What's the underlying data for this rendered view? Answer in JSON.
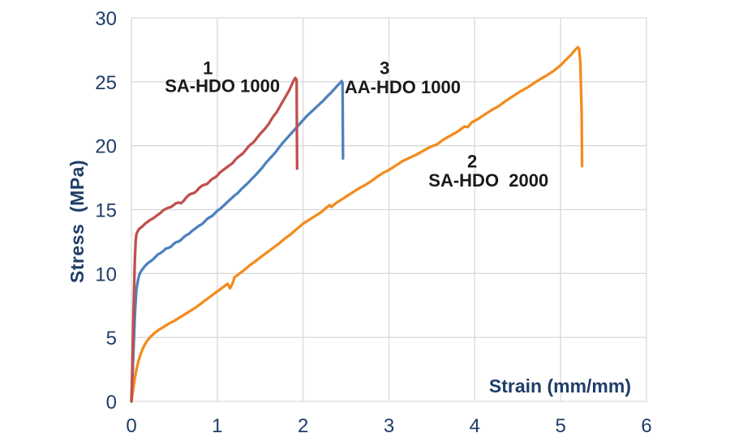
{
  "chart_data": {
    "type": "line",
    "title": "",
    "xlabel": "Strain (mm/mm)",
    "ylabel": "Stress  (MPa)",
    "xlim": [
      0,
      6
    ],
    "ylim": [
      0,
      30
    ],
    "xticks": [
      0,
      1,
      2,
      3,
      4,
      5,
      6
    ],
    "yticks": [
      0,
      5,
      10,
      15,
      20,
      25,
      30
    ],
    "grid": true,
    "legend_position": "none",
    "colors": {
      "grid": "#D9D9D9",
      "axis_text": "#1F3D68",
      "annotation_text": "#1A1A1A",
      "background": "#FFFFFF"
    },
    "series": [
      {
        "curve_number": "1",
        "name": "SA-HDO 1000",
        "color": "#C0504D",
        "annotation": {
          "number_pos": [
            0.89,
            26.1
          ],
          "label_pos": [
            1.06,
            24.7
          ]
        },
        "points": [
          [
            0.0,
            0.0
          ],
          [
            0.01,
            2.5
          ],
          [
            0.02,
            5.5
          ],
          [
            0.03,
            8.5
          ],
          [
            0.04,
            11.0
          ],
          [
            0.05,
            12.6
          ],
          [
            0.06,
            13.1
          ],
          [
            0.08,
            13.4
          ],
          [
            0.1,
            13.55
          ],
          [
            0.13,
            13.7
          ],
          [
            0.16,
            13.9
          ],
          [
            0.19,
            14.05
          ],
          [
            0.22,
            14.2
          ],
          [
            0.25,
            14.3
          ],
          [
            0.28,
            14.45
          ],
          [
            0.31,
            14.6
          ],
          [
            0.34,
            14.75
          ],
          [
            0.37,
            14.95
          ],
          [
            0.4,
            15.05
          ],
          [
            0.43,
            15.15
          ],
          [
            0.46,
            15.2
          ],
          [
            0.49,
            15.35
          ],
          [
            0.52,
            15.5
          ],
          [
            0.55,
            15.55
          ],
          [
            0.58,
            15.5
          ],
          [
            0.61,
            15.7
          ],
          [
            0.64,
            15.95
          ],
          [
            0.67,
            16.15
          ],
          [
            0.7,
            16.25
          ],
          [
            0.73,
            16.3
          ],
          [
            0.76,
            16.45
          ],
          [
            0.79,
            16.7
          ],
          [
            0.82,
            16.85
          ],
          [
            0.85,
            16.95
          ],
          [
            0.88,
            17.0
          ],
          [
            0.91,
            17.2
          ],
          [
            0.94,
            17.4
          ],
          [
            0.97,
            17.5
          ],
          [
            1.0,
            17.65
          ],
          [
            1.03,
            17.9
          ],
          [
            1.06,
            18.05
          ],
          [
            1.09,
            18.2
          ],
          [
            1.12,
            18.35
          ],
          [
            1.15,
            18.5
          ],
          [
            1.18,
            18.65
          ],
          [
            1.21,
            18.9
          ],
          [
            1.24,
            19.1
          ],
          [
            1.27,
            19.25
          ],
          [
            1.3,
            19.4
          ],
          [
            1.33,
            19.65
          ],
          [
            1.36,
            19.9
          ],
          [
            1.39,
            20.1
          ],
          [
            1.42,
            20.25
          ],
          [
            1.45,
            20.5
          ],
          [
            1.48,
            20.75
          ],
          [
            1.51,
            21.0
          ],
          [
            1.54,
            21.2
          ],
          [
            1.57,
            21.45
          ],
          [
            1.6,
            21.7
          ],
          [
            1.63,
            22.05
          ],
          [
            1.66,
            22.35
          ],
          [
            1.69,
            22.6
          ],
          [
            1.72,
            22.95
          ],
          [
            1.75,
            23.3
          ],
          [
            1.78,
            23.65
          ],
          [
            1.81,
            24.0
          ],
          [
            1.84,
            24.35
          ],
          [
            1.87,
            24.8
          ],
          [
            1.89,
            25.1
          ],
          [
            1.91,
            25.3
          ],
          [
            1.925,
            25.15
          ],
          [
            1.93,
            18.2
          ]
        ]
      },
      {
        "curve_number": "2",
        "name": "SA-HDO  2000",
        "color": "#F28C1E",
        "annotation": {
          "number_pos": [
            3.97,
            18.8
          ],
          "label_pos": [
            4.16,
            17.3
          ]
        },
        "points": [
          [
            0.0,
            0.0
          ],
          [
            0.02,
            0.9
          ],
          [
            0.04,
            1.8
          ],
          [
            0.06,
            2.5
          ],
          [
            0.08,
            3.1
          ],
          [
            0.1,
            3.55
          ],
          [
            0.13,
            4.1
          ],
          [
            0.16,
            4.5
          ],
          [
            0.19,
            4.8
          ],
          [
            0.23,
            5.1
          ],
          [
            0.27,
            5.35
          ],
          [
            0.32,
            5.6
          ],
          [
            0.38,
            5.85
          ],
          [
            0.44,
            6.1
          ],
          [
            0.5,
            6.3
          ],
          [
            0.56,
            6.55
          ],
          [
            0.62,
            6.8
          ],
          [
            0.68,
            7.05
          ],
          [
            0.74,
            7.3
          ],
          [
            0.8,
            7.6
          ],
          [
            0.86,
            7.9
          ],
          [
            0.92,
            8.2
          ],
          [
            0.98,
            8.5
          ],
          [
            1.04,
            8.8
          ],
          [
            1.09,
            9.05
          ],
          [
            1.12,
            9.2
          ],
          [
            1.15,
            8.85
          ],
          [
            1.18,
            9.25
          ],
          [
            1.2,
            9.7
          ],
          [
            1.25,
            9.95
          ],
          [
            1.3,
            10.2
          ],
          [
            1.37,
            10.6
          ],
          [
            1.44,
            10.95
          ],
          [
            1.51,
            11.3
          ],
          [
            1.58,
            11.65
          ],
          [
            1.65,
            12.0
          ],
          [
            1.72,
            12.35
          ],
          [
            1.79,
            12.75
          ],
          [
            1.86,
            13.1
          ],
          [
            1.93,
            13.5
          ],
          [
            2.0,
            13.9
          ],
          [
            2.07,
            14.2
          ],
          [
            2.14,
            14.5
          ],
          [
            2.21,
            14.8
          ],
          [
            2.28,
            15.2
          ],
          [
            2.31,
            15.35
          ],
          [
            2.33,
            15.2
          ],
          [
            2.38,
            15.5
          ],
          [
            2.45,
            15.8
          ],
          [
            2.52,
            16.1
          ],
          [
            2.59,
            16.4
          ],
          [
            2.66,
            16.7
          ],
          [
            2.73,
            16.95
          ],
          [
            2.8,
            17.25
          ],
          [
            2.87,
            17.6
          ],
          [
            2.94,
            17.9
          ],
          [
            3.0,
            18.1
          ],
          [
            3.08,
            18.45
          ],
          [
            3.16,
            18.8
          ],
          [
            3.24,
            19.05
          ],
          [
            3.32,
            19.3
          ],
          [
            3.4,
            19.6
          ],
          [
            3.48,
            19.9
          ],
          [
            3.56,
            20.1
          ],
          [
            3.64,
            20.5
          ],
          [
            3.72,
            20.8
          ],
          [
            3.8,
            21.1
          ],
          [
            3.88,
            21.5
          ],
          [
            3.92,
            21.45
          ],
          [
            3.96,
            21.8
          ],
          [
            4.04,
            22.1
          ],
          [
            4.12,
            22.45
          ],
          [
            4.2,
            22.8
          ],
          [
            4.28,
            23.1
          ],
          [
            4.36,
            23.5
          ],
          [
            4.44,
            23.85
          ],
          [
            4.52,
            24.2
          ],
          [
            4.6,
            24.5
          ],
          [
            4.68,
            24.85
          ],
          [
            4.76,
            25.2
          ],
          [
            4.84,
            25.5
          ],
          [
            4.92,
            25.85
          ],
          [
            5.0,
            26.3
          ],
          [
            5.06,
            26.7
          ],
          [
            5.12,
            27.1
          ],
          [
            5.17,
            27.5
          ],
          [
            5.2,
            27.7
          ],
          [
            5.215,
            27.6
          ],
          [
            5.23,
            26.5
          ],
          [
            5.245,
            22.5
          ],
          [
            5.25,
            18.4
          ]
        ]
      },
      {
        "curve_number": "3",
        "name": "AA-HDO 1000",
        "color": "#4F81BD",
        "annotation": {
          "number_pos": [
            2.95,
            26.1
          ],
          "label_pos": [
            3.16,
            24.6
          ]
        },
        "points": [
          [
            0.0,
            0.0
          ],
          [
            0.01,
            1.5
          ],
          [
            0.02,
            3.2
          ],
          [
            0.03,
            5.0
          ],
          [
            0.04,
            6.6
          ],
          [
            0.05,
            7.9
          ],
          [
            0.06,
            8.8
          ],
          [
            0.08,
            9.6
          ],
          [
            0.1,
            10.05
          ],
          [
            0.13,
            10.35
          ],
          [
            0.16,
            10.6
          ],
          [
            0.19,
            10.8
          ],
          [
            0.22,
            10.95
          ],
          [
            0.25,
            11.1
          ],
          [
            0.28,
            11.3
          ],
          [
            0.31,
            11.5
          ],
          [
            0.34,
            11.6
          ],
          [
            0.37,
            11.75
          ],
          [
            0.4,
            11.95
          ],
          [
            0.43,
            12.0
          ],
          [
            0.46,
            12.1
          ],
          [
            0.49,
            12.3
          ],
          [
            0.52,
            12.45
          ],
          [
            0.55,
            12.5
          ],
          [
            0.58,
            12.65
          ],
          [
            0.61,
            12.85
          ],
          [
            0.64,
            13.0
          ],
          [
            0.67,
            13.1
          ],
          [
            0.7,
            13.3
          ],
          [
            0.73,
            13.45
          ],
          [
            0.76,
            13.6
          ],
          [
            0.79,
            13.75
          ],
          [
            0.82,
            13.85
          ],
          [
            0.85,
            14.05
          ],
          [
            0.88,
            14.25
          ],
          [
            0.91,
            14.4
          ],
          [
            0.94,
            14.5
          ],
          [
            0.97,
            14.7
          ],
          [
            1.0,
            14.9
          ],
          [
            1.04,
            15.1
          ],
          [
            1.08,
            15.35
          ],
          [
            1.12,
            15.6
          ],
          [
            1.16,
            15.85
          ],
          [
            1.2,
            16.1
          ],
          [
            1.24,
            16.3
          ],
          [
            1.28,
            16.6
          ],
          [
            1.32,
            16.85
          ],
          [
            1.36,
            17.1
          ],
          [
            1.4,
            17.4
          ],
          [
            1.44,
            17.65
          ],
          [
            1.48,
            17.95
          ],
          [
            1.52,
            18.25
          ],
          [
            1.56,
            18.6
          ],
          [
            1.6,
            18.9
          ],
          [
            1.64,
            19.2
          ],
          [
            1.68,
            19.5
          ],
          [
            1.72,
            19.85
          ],
          [
            1.76,
            20.2
          ],
          [
            1.8,
            20.5
          ],
          [
            1.84,
            20.8
          ],
          [
            1.88,
            21.1
          ],
          [
            1.92,
            21.4
          ],
          [
            1.96,
            21.7
          ],
          [
            2.0,
            22.0
          ],
          [
            2.04,
            22.3
          ],
          [
            2.08,
            22.55
          ],
          [
            2.12,
            22.8
          ],
          [
            2.16,
            23.05
          ],
          [
            2.2,
            23.3
          ],
          [
            2.24,
            23.55
          ],
          [
            2.28,
            23.85
          ],
          [
            2.32,
            24.1
          ],
          [
            2.36,
            24.4
          ],
          [
            2.4,
            24.7
          ],
          [
            2.43,
            24.9
          ],
          [
            2.45,
            25.05
          ],
          [
            2.46,
            24.9
          ],
          [
            2.465,
            19.0
          ]
        ]
      }
    ]
  }
}
